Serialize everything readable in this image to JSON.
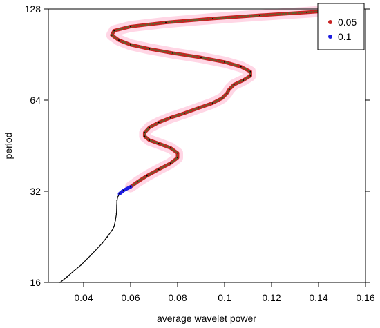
{
  "chart_data": {
    "type": "line",
    "title": "",
    "xlabel": "average wavelet power",
    "ylabel": "period",
    "x_scale": "linear",
    "y_scale": "log2",
    "xlim": [
      0.025,
      0.16
    ],
    "ylim": [
      16,
      128
    ],
    "x_ticks": [
      "0.04",
      "0.06",
      "0.08",
      "0.1",
      "0.12",
      "0.14",
      "0.16"
    ],
    "x_tick_values": [
      0.04,
      0.06,
      0.08,
      0.1,
      0.12,
      0.14,
      0.16
    ],
    "y_ticks": [
      "16",
      "32",
      "64",
      "128"
    ],
    "y_tick_values": [
      16,
      32,
      64,
      128
    ],
    "grid": false,
    "legend_position": "top-right",
    "legend": [
      {
        "label": "0.05",
        "color": "#c82121"
      },
      {
        "label": "0.1",
        "color": "#1d1de0"
      }
    ],
    "colors": {
      "line": "#000000",
      "sig_005": "#c82121",
      "sig_005_halo": "#ffc8dc",
      "sig_005_dark": "#556b2f",
      "sig_01": "#1d1de0"
    },
    "series": [
      {
        "name": "average wavelet power",
        "points": [
          [
            0.03,
            16.0
          ],
          [
            0.033,
            16.7
          ],
          [
            0.036,
            17.5
          ],
          [
            0.039,
            18.3
          ],
          [
            0.042,
            19.3
          ],
          [
            0.045,
            20.4
          ],
          [
            0.048,
            21.6
          ],
          [
            0.05,
            22.6
          ],
          [
            0.052,
            23.7
          ],
          [
            0.053,
            24.5
          ],
          [
            0.0535,
            25.6
          ],
          [
            0.054,
            27.0
          ],
          [
            0.0541,
            28.6
          ],
          [
            0.0542,
            29.8
          ],
          [
            0.0545,
            30.6
          ],
          [
            0.0553,
            31.4
          ],
          [
            0.057,
            32.2
          ],
          [
            0.06,
            33.1
          ],
          [
            0.063,
            34.4
          ],
          [
            0.067,
            36.0
          ],
          [
            0.072,
            37.8
          ],
          [
            0.077,
            39.6
          ],
          [
            0.08,
            41.3
          ],
          [
            0.08,
            42.8
          ],
          [
            0.077,
            44.5
          ],
          [
            0.072,
            46.0
          ],
          [
            0.068,
            47.2
          ],
          [
            0.066,
            48.6
          ],
          [
            0.066,
            50.0
          ],
          [
            0.068,
            52.0
          ],
          [
            0.072,
            54.0
          ],
          [
            0.077,
            56.0
          ],
          [
            0.083,
            58.0
          ],
          [
            0.089,
            60.3
          ],
          [
            0.095,
            62.6
          ],
          [
            0.099,
            65.0
          ],
          [
            0.101,
            67.4
          ],
          [
            0.102,
            69.5
          ],
          [
            0.104,
            72.0
          ],
          [
            0.108,
            74.5
          ],
          [
            0.111,
            77.0
          ],
          [
            0.111,
            79.5
          ],
          [
            0.107,
            82.5
          ],
          [
            0.1,
            85.5
          ],
          [
            0.09,
            88.5
          ],
          [
            0.078,
            91.5
          ],
          [
            0.068,
            94.5
          ],
          [
            0.06,
            97.5
          ],
          [
            0.055,
            101.0
          ],
          [
            0.052,
            105.0
          ],
          [
            0.053,
            108.5
          ],
          [
            0.06,
            112.0
          ],
          [
            0.075,
            115.5
          ],
          [
            0.095,
            119.0
          ],
          [
            0.115,
            122.0
          ],
          [
            0.135,
            124.8
          ],
          [
            0.155,
            128.0
          ]
        ],
        "sig_005_range": [
          33.1,
          128.0
        ],
        "sig_01_range": [
          31.4,
          33.1
        ]
      }
    ]
  }
}
